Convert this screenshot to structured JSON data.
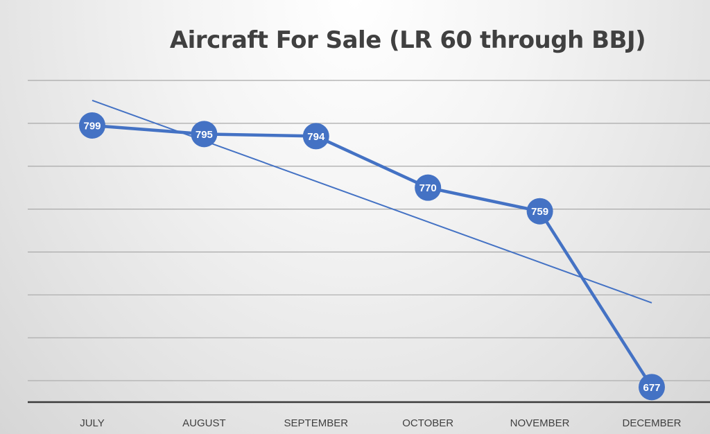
{
  "chart_data": {
    "type": "line",
    "title": "Aircraft For Sale (LR 60 through BBJ)",
    "categories": [
      "JULY",
      "AUGUST",
      "SEPTEMBER",
      "OCTOBER",
      "NOVEMBER",
      "DECEMBER"
    ],
    "series": [
      {
        "values": [
          799,
          795,
          794,
          770,
          759,
          677
        ]
      }
    ],
    "trendline": {
      "type": "linear",
      "start": 810.7,
      "end": 716.3
    },
    "ylim": [
      670,
      820
    ],
    "y_gridlines": [
      680,
      700,
      720,
      740,
      760,
      780,
      800,
      820
    ],
    "y_tick_labels_shown": false,
    "legend": "none",
    "colors": {
      "series": "#4472c4",
      "grid": "#a9a9a9",
      "axis": "#3a3a3a",
      "label_text": "#ffffff"
    }
  }
}
